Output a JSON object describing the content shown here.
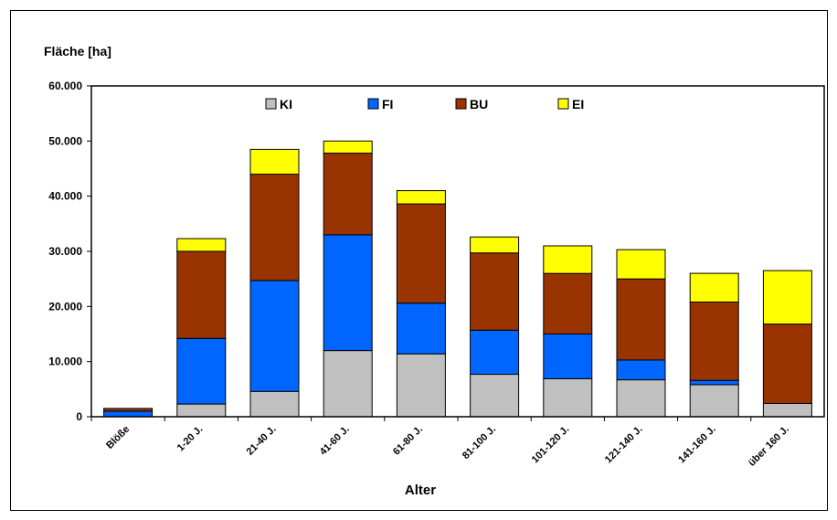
{
  "chart_data": {
    "type": "bar",
    "stacked": true,
    "ylabel": "Fläche [ha]",
    "xlabel": "Alter",
    "categories": [
      "Blöße",
      "1-20 J.",
      "21-40 J.",
      "41-60 J.",
      "61-80 J.",
      "81-100 J.",
      "101-120 J.",
      "121-140 J.",
      "141-160 J.",
      "über 160 J."
    ],
    "series": [
      {
        "name": "KI",
        "color": "#c0c0c0",
        "values": [
          0,
          2300,
          4600,
          12000,
          11400,
          7700,
          6900,
          6700,
          5800,
          2400
        ]
      },
      {
        "name": "FI",
        "color": "#0066ff",
        "values": [
          1000,
          11900,
          20100,
          21000,
          9200,
          8000,
          8100,
          3600,
          800,
          0
        ]
      },
      {
        "name": "BU",
        "color": "#993300",
        "values": [
          500,
          15800,
          19300,
          14800,
          18000,
          14000,
          11000,
          14700,
          14200,
          14400
        ]
      },
      {
        "name": "EI",
        "color": "#ffff00",
        "values": [
          0,
          2300,
          4500,
          2200,
          2400,
          2900,
          5000,
          5300,
          5200,
          9700
        ]
      }
    ],
    "ylim": [
      0,
      60000
    ],
    "yticks": [
      "0",
      "10.000",
      "20.000",
      "30.000",
      "40.000",
      "50.000",
      "60.000"
    ],
    "legend_position": "top-center",
    "grid": false
  }
}
